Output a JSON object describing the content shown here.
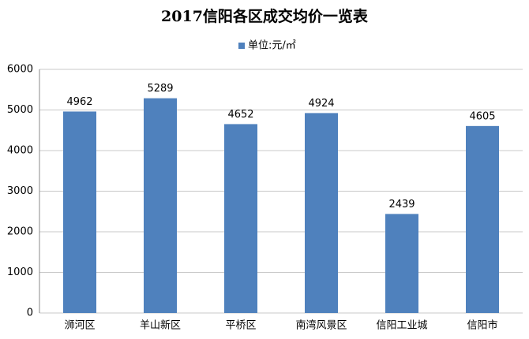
{
  "chart_data": {
    "type": "bar",
    "title": "2017信阳各区成交均价一览表",
    "categories": [
      "浉河区",
      "羊山新区",
      "平桥区",
      "南湾风景区",
      "信阳工业城",
      "信阳市"
    ],
    "series": [
      {
        "name": "单位:元/㎡",
        "color": "#4f81bd",
        "values": [
          4962,
          5289,
          4652,
          4924,
          2439,
          4605
        ]
      }
    ],
    "ylim": [
      0,
      6000
    ],
    "yticks": [
      0,
      1000,
      2000,
      3000,
      4000,
      5000,
      6000
    ],
    "grid": true,
    "legend": "top"
  }
}
